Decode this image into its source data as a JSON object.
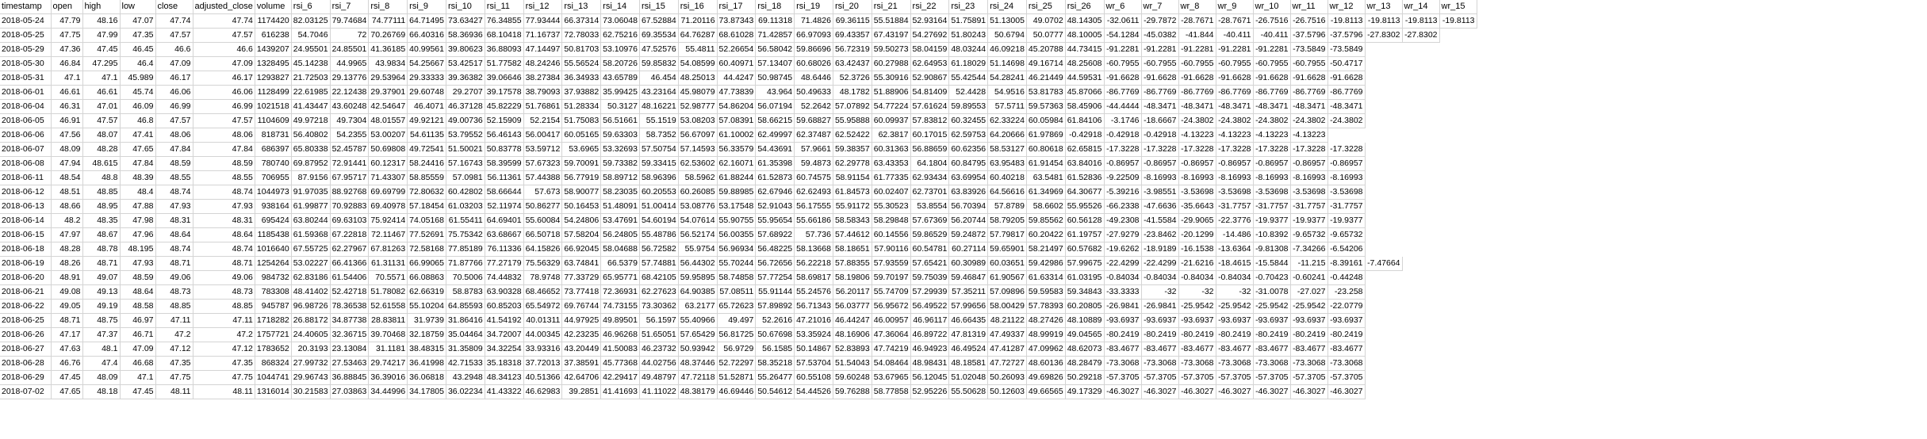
{
  "sheet": {
    "headers": [
      "timestamp",
      "open",
      "high",
      "low",
      "close",
      "adjusted_close",
      "volume",
      "rsi_6",
      "rsi_7",
      "rsi_8",
      "rsi_9",
      "rsi_10",
      "rsi_11",
      "rsi_12",
      "rsi_13",
      "rsi_14",
      "rsi_15",
      "rsi_16",
      "rsi_17",
      "rsi_18",
      "rsi_19",
      "rsi_20",
      "rsi_21",
      "rsi_22",
      "rsi_23",
      "rsi_24",
      "rsi_25",
      "rsi_26",
      "wr_6",
      "wr_7",
      "wr_8",
      "wr_9",
      "wr_10",
      "wr_11",
      "wr_12",
      "wr_13",
      "wr_14",
      "wr_15"
    ],
    "rows": [
      [
        "2018-05-24",
        "47.79",
        "48.16",
        "47.07",
        "47.74",
        "47.74",
        "1174420",
        "82.03125",
        "79.74684",
        "74.77111",
        "64.71495",
        "73.63427",
        "76.34855",
        "77.93444",
        "66.37314",
        "73.06048",
        "67.52884",
        "71.20116",
        "73.87343",
        "69.11318",
        "71.4826",
        "69.36115",
        "55.51884",
        "52.93164",
        "51.75891",
        "51.13005",
        "49.0702",
        "48.14305",
        "-32.0611",
        "-29.7872",
        "-28.7671",
        "-28.7671",
        "-26.7516",
        "-26.7516",
        "-19.8113",
        "-19.8113",
        "-19.8113",
        "-19.8113"
      ],
      [
        "2018-05-25",
        "47.75",
        "47.99",
        "47.35",
        "47.57",
        "47.57",
        "616238",
        "54.7046",
        "72",
        "70.26769",
        "66.40316",
        "58.36936",
        "68.10418",
        "71.16737",
        "72.78033",
        "62.75216",
        "69.35534",
        "64.76287",
        "68.61028",
        "71.42857",
        "66.97093",
        "69.43357",
        "67.43197",
        "54.27692",
        "51.80243",
        "50.6794",
        "50.0777",
        "48.10005",
        "-54.1284",
        "-45.0382",
        "-41.844",
        "-40.411",
        "-40.411",
        "-37.5796",
        "-37.5796",
        "-27.8302",
        "-27.8302"
      ],
      [
        "2018-05-29",
        "47.36",
        "47.45",
        "46.45",
        "46.6",
        "46.6",
        "1439207",
        "24.95501",
        "24.85501",
        "41.36185",
        "40.99561",
        "39.80623",
        "36.88093",
        "47.14497",
        "50.81703",
        "53.10976",
        "47.52576",
        "55.4811",
        "52.26654",
        "56.58042",
        "59.86696",
        "56.72319",
        "59.50273",
        "58.04159",
        "48.03244",
        "46.09218",
        "45.20788",
        "44.73415",
        "-91.2281",
        "-91.2281",
        "-91.2281",
        "-91.2281",
        "-91.2281",
        "-73.5849",
        "-73.5849"
      ],
      [
        "2018-05-30",
        "46.84",
        "47.295",
        "46.4",
        "47.09",
        "47.09",
        "1328495",
        "45.14238",
        "44.9965",
        "43.9834",
        "54.25667",
        "53.42517",
        "51.77582",
        "48.24246",
        "55.56524",
        "58.20726",
        "59.85832",
        "54.08599",
        "60.40971",
        "57.13407",
        "60.68026",
        "63.42437",
        "60.27988",
        "62.64953",
        "61.18029",
        "51.14698",
        "49.16714",
        "48.25608",
        "-60.7955",
        "-60.7955",
        "-60.7955",
        "-60.7955",
        "-60.7955",
        "-60.7955",
        "-50.4717"
      ],
      [
        "2018-05-31",
        "47.1",
        "47.1",
        "45.989",
        "46.17",
        "46.17",
        "1293827",
        "21.72503",
        "29.13776",
        "29.53964",
        "29.33333",
        "39.36382",
        "39.06646",
        "38.27384",
        "36.34933",
        "43.65789",
        "46.454",
        "48.25013",
        "44.4247",
        "50.98745",
        "48.6446",
        "52.3726",
        "55.30916",
        "52.90867",
        "55.42544",
        "54.28241",
        "46.21449",
        "44.59531",
        "-91.6628",
        "-91.6628",
        "-91.6628",
        "-91.6628",
        "-91.6628",
        "-91.6628",
        "-91.6628"
      ],
      [
        "2018-06-01",
        "46.61",
        "46.61",
        "45.74",
        "46.06",
        "46.06",
        "1128499",
        "22.61985",
        "22.12438",
        "29.37901",
        "29.60748",
        "29.2707",
        "39.17578",
        "38.79093",
        "37.93882",
        "35.99425",
        "43.23164",
        "45.98079",
        "47.73839",
        "43.964",
        "50.49633",
        "48.1782",
        "51.88906",
        "54.81409",
        "52.4428",
        "54.9516",
        "53.81783",
        "45.87066",
        "-86.7769",
        "-86.7769",
        "-86.7769",
        "-86.7769",
        "-86.7769",
        "-86.7769",
        "-86.7769"
      ],
      [
        "2018-06-04",
        "46.31",
        "47.01",
        "46.09",
        "46.99",
        "46.99",
        "1021518",
        "41.43447",
        "43.60248",
        "42.54647",
        "46.4071",
        "46.37128",
        "45.82229",
        "51.76861",
        "51.28334",
        "50.3127",
        "48.16221",
        "52.98777",
        "54.86204",
        "56.07194",
        "52.2642",
        "57.07892",
        "54.77224",
        "57.61624",
        "59.89553",
        "57.5711",
        "59.57363",
        "58.45906",
        "-44.4444",
        "-48.3471",
        "-48.3471",
        "-48.3471",
        "-48.3471",
        "-48.3471",
        "-48.3471"
      ],
      [
        "2018-06-05",
        "46.91",
        "47.57",
        "46.8",
        "47.57",
        "47.57",
        "1104609",
        "49.97218",
        "49.7304",
        "48.01557",
        "49.92121",
        "49.00736",
        "52.15909",
        "52.2154",
        "51.75083",
        "56.51661",
        "55.1519",
        "53.08203",
        "57.08391",
        "58.66215",
        "59.68827",
        "55.95888",
        "60.09937",
        "57.83812",
        "60.32455",
        "62.33224",
        "60.05984",
        "61.84106",
        "-3.1746",
        "-18.6667",
        "-24.3802",
        "-24.3802",
        "-24.3802",
        "-24.3802",
        "-24.3802"
      ],
      [
        "2018-06-06",
        "47.56",
        "48.07",
        "47.41",
        "48.06",
        "48.06",
        "818731",
        "56.40802",
        "54.2355",
        "53.00207",
        "54.61135",
        "53.79552",
        "56.46143",
        "56.00417",
        "60.05165",
        "59.63303",
        "58.7352",
        "56.67097",
        "61.10002",
        "62.49997",
        "62.37487",
        "62.52422",
        "62.3817",
        "60.17015",
        "62.59753",
        "64.20666",
        "61.97869",
        "-0.42918",
        "-0.42918",
        "-0.42918",
        "-4.13223",
        "-4.13223",
        "-4.13223",
        "-4.13223"
      ],
      [
        "2018-06-07",
        "48.09",
        "48.28",
        "47.65",
        "47.84",
        "47.84",
        "686397",
        "65.80338",
        "52.45787",
        "50.69808",
        "49.72541",
        "51.50021",
        "50.83778",
        "53.59712",
        "53.6965",
        "53.32693",
        "57.50754",
        "57.14593",
        "56.33579",
        "54.43691",
        "57.9661",
        "59.38357",
        "60.31363",
        "56.88659",
        "60.62356",
        "58.53127",
        "60.80618",
        "62.65815",
        "-17.3228",
        "-17.3228",
        "-17.3228",
        "-17.3228",
        "-17.3228",
        "-17.3228",
        "-17.3228"
      ],
      [
        "2018-06-08",
        "47.94",
        "48.615",
        "47.84",
        "48.59",
        "48.59",
        "780740",
        "69.87952",
        "72.91441",
        "60.12317",
        "58.24416",
        "57.16743",
        "58.39599",
        "57.67323",
        "59.70091",
        "59.73382",
        "59.33415",
        "62.53602",
        "62.16071",
        "61.35398",
        "59.4873",
        "62.29778",
        "63.43353",
        "64.1804",
        "60.84795",
        "63.95483",
        "61.91454",
        "63.84016",
        "-0.86957",
        "-0.86957",
        "-0.86957",
        "-0.86957",
        "-0.86957",
        "-0.86957",
        "-0.86957"
      ],
      [
        "2018-06-11",
        "48.54",
        "48.8",
        "48.39",
        "48.55",
        "48.55",
        "706955",
        "87.9156",
        "67.95717",
        "71.43307",
        "58.85559",
        "57.0981",
        "56.11361",
        "57.44388",
        "56.77919",
        "58.89712",
        "58.96396",
        "58.5962",
        "61.88244",
        "61.52873",
        "60.74575",
        "58.91154",
        "61.77335",
        "62.93434",
        "63.69954",
        "60.40218",
        "63.5481",
        "61.52836",
        "-9.22509",
        "-8.16993",
        "-8.16993",
        "-8.16993",
        "-8.16993",
        "-8.16993",
        "-8.16993"
      ],
      [
        "2018-06-12",
        "48.51",
        "48.85",
        "48.4",
        "48.74",
        "48.74",
        "1044973",
        "91.97035",
        "88.92768",
        "69.69799",
        "72.80632",
        "60.42802",
        "58.66644",
        "57.673",
        "58.90077",
        "58.23035",
        "60.20553",
        "60.26085",
        "59.88985",
        "62.67946",
        "62.62493",
        "61.84573",
        "60.02407",
        "62.73701",
        "63.83926",
        "64.56616",
        "61.34969",
        "64.30677",
        "-5.39216",
        "-3.98551",
        "-3.53698",
        "-3.53698",
        "-3.53698",
        "-3.53698",
        "-3.53698"
      ],
      [
        "2018-06-13",
        "48.66",
        "48.95",
        "47.88",
        "47.93",
        "47.93",
        "938164",
        "61.99877",
        "70.92883",
        "69.40978",
        "57.18454",
        "61.03203",
        "52.11974",
        "50.86277",
        "50.16453",
        "51.48091",
        "51.00414",
        "53.08776",
        "53.17548",
        "52.91043",
        "56.17555",
        "55.91172",
        "55.30523",
        "53.8554",
        "56.70394",
        "57.8789",
        "58.6602",
        "55.95526",
        "-66.2338",
        "-47.6636",
        "-35.6643",
        "-31.7757",
        "-31.7757",
        "-31.7757",
        "-31.7757"
      ],
      [
        "2018-06-14",
        "48.2",
        "48.35",
        "47.98",
        "48.31",
        "48.31",
        "695424",
        "63.80244",
        "69.63103",
        "75.92414",
        "74.05168",
        "61.55411",
        "64.69401",
        "55.60084",
        "54.24806",
        "53.47691",
        "54.60194",
        "54.07614",
        "55.90755",
        "55.95654",
        "55.66186",
        "58.58343",
        "58.29848",
        "57.67369",
        "56.20744",
        "58.79205",
        "59.85562",
        "60.56128",
        "-49.2308",
        "-41.5584",
        "-29.9065",
        "-22.3776",
        "-19.9377",
        "-19.9377",
        "-19.9377"
      ],
      [
        "2018-06-15",
        "47.97",
        "48.67",
        "47.96",
        "48.64",
        "48.64",
        "1185438",
        "61.59368",
        "67.22818",
        "72.11467",
        "77.52691",
        "75.75342",
        "63.68667",
        "66.50718",
        "57.58204",
        "56.24805",
        "55.48786",
        "56.52174",
        "56.00355",
        "57.68922",
        "57.736",
        "57.44612",
        "60.14556",
        "59.86529",
        "59.24872",
        "57.79817",
        "60.20422",
        "61.19757",
        "-27.9279",
        "-23.8462",
        "-20.1299",
        "-14.486",
        "-10.8392",
        "-9.65732",
        "-9.65732"
      ],
      [
        "2018-06-18",
        "48.28",
        "48.78",
        "48.195",
        "48.74",
        "48.74",
        "1016640",
        "67.55725",
        "62.27967",
        "67.81263",
        "72.58168",
        "77.85189",
        "76.11336",
        "64.15826",
        "66.92045",
        "58.04688",
        "56.72582",
        "55.9754",
        "56.96934",
        "56.48225",
        "58.13668",
        "58.18651",
        "57.90116",
        "60.54781",
        "60.27114",
        "59.65901",
        "58.21497",
        "60.57682",
        "-19.6262",
        "-18.9189",
        "-16.1538",
        "-13.6364",
        "-9.81308",
        "-7.34266",
        "-6.54206"
      ],
      [
        "2018-06-19",
        "48.26",
        "48.71",
        "47.93",
        "48.71",
        "48.71",
        "1254264",
        "53.02227",
        "66.41366",
        "61.31131",
        "66.99065",
        "71.87766",
        "77.27179",
        "75.56329",
        "63.74841",
        "66.5379",
        "57.74881",
        "56.44302",
        "55.70244",
        "56.72656",
        "56.22218",
        "57.88355",
        "57.93559",
        "57.65421",
        "60.30989",
        "60.03651",
        "59.42986",
        "57.99675",
        "-22.4299",
        "-22.4299",
        "-21.6216",
        "-18.4615",
        "-15.5844",
        "-11.215",
        "-8.39161",
        "-7.47664"
      ],
      [
        "2018-06-20",
        "48.91",
        "49.07",
        "48.59",
        "49.06",
        "49.06",
        "984732",
        "62.83186",
        "61.54406",
        "70.5571",
        "66.08863",
        "70.5006",
        "74.44832",
        "78.9748",
        "77.33729",
        "65.95771",
        "68.42105",
        "59.95895",
        "58.74858",
        "57.77254",
        "58.69817",
        "58.19806",
        "59.70197",
        "59.75039",
        "59.46847",
        "61.90567",
        "61.63314",
        "61.03195",
        "-0.84034",
        "-0.84034",
        "-0.84034",
        "-0.84034",
        "-0.70423",
        "-0.60241",
        "-0.44248"
      ],
      [
        "2018-06-21",
        "49.08",
        "49.13",
        "48.64",
        "48.73",
        "48.73",
        "783308",
        "48.41402",
        "52.42718",
        "51.78082",
        "62.66319",
        "58.8783",
        "63.90328",
        "68.46652",
        "73.77418",
        "72.36931",
        "62.27623",
        "64.90385",
        "57.08511",
        "55.91144",
        "55.24576",
        "56.20117",
        "55.74709",
        "57.29939",
        "57.35211",
        "57.09896",
        "59.59583",
        "59.34843",
        "-33.3333",
        "-32",
        "-32",
        "-32",
        "-31.0078",
        "-27.027",
        "-23.258"
      ],
      [
        "2018-06-22",
        "49.05",
        "49.19",
        "48.58",
        "48.85",
        "48.85",
        "945787",
        "96.98726",
        "78.36538",
        "52.61558",
        "55.10204",
        "64.85593",
        "60.85203",
        "65.54972",
        "69.76744",
        "74.73155",
        "73.30362",
        "63.2177",
        "65.72623",
        "57.89892",
        "56.71343",
        "56.03777",
        "56.95672",
        "56.49522",
        "57.99656",
        "58.00429",
        "57.78393",
        "60.20805",
        "-26.9841",
        "-26.9841",
        "-25.9542",
        "-25.9542",
        "-25.9542",
        "-25.9542",
        "-22.0779"
      ],
      [
        "2018-06-25",
        "48.71",
        "48.75",
        "46.97",
        "47.11",
        "47.11",
        "1718282",
        "26.88172",
        "34.87738",
        "28.83811",
        "31.9739",
        "31.86416",
        "41.54192",
        "40.01311",
        "44.97925",
        "49.89501",
        "56.1597",
        "55.40966",
        "49.497",
        "52.2616",
        "47.21016",
        "46.44247",
        "46.00957",
        "46.96117",
        "46.66435",
        "48.21122",
        "48.27426",
        "48.10889",
        "-93.6937",
        "-93.6937",
        "-93.6937",
        "-93.6937",
        "-93.6937",
        "-93.6937",
        "-93.6937"
      ],
      [
        "2018-06-26",
        "47.17",
        "47.37",
        "46.71",
        "47.2",
        "47.2",
        "1757721",
        "24.40605",
        "32.36715",
        "39.70468",
        "32.18759",
        "35.04464",
        "34.72007",
        "44.00345",
        "42.23235",
        "46.96268",
        "51.65051",
        "57.65429",
        "56.81725",
        "50.67698",
        "53.35924",
        "48.16906",
        "47.36064",
        "46.89722",
        "47.81319",
        "47.49337",
        "48.99919",
        "49.04565",
        "-80.2419",
        "-80.2419",
        "-80.2419",
        "-80.2419",
        "-80.2419",
        "-80.2419",
        "-80.2419"
      ],
      [
        "2018-06-27",
        "47.63",
        "48.1",
        "47.09",
        "47.12",
        "47.12",
        "1783652",
        "20.3193",
        "23.13084",
        "31.1181",
        "38.48315",
        "31.35809",
        "34.32254",
        "33.93316",
        "43.20449",
        "41.50083",
        "46.23732",
        "50.93942",
        "56.9729",
        "56.1585",
        "50.14867",
        "52.83893",
        "47.74219",
        "46.94923",
        "46.49524",
        "47.41287",
        "47.09962",
        "48.62073",
        "-83.4677",
        "-83.4677",
        "-83.4677",
        "-83.4677",
        "-83.4677",
        "-83.4677",
        "-83.4677"
      ],
      [
        "2018-06-28",
        "46.76",
        "47.4",
        "46.68",
        "47.35",
        "47.35",
        "868324",
        "27.99732",
        "27.53463",
        "29.74217",
        "36.41998",
        "42.71533",
        "35.18318",
        "37.72013",
        "37.38591",
        "45.77368",
        "44.02756",
        "48.37446",
        "52.72297",
        "58.35218",
        "57.53704",
        "51.54043",
        "54.08464",
        "48.98431",
        "48.18581",
        "47.72727",
        "48.60136",
        "48.28479",
        "-73.3068",
        "-73.3068",
        "-73.3068",
        "-73.3068",
        "-73.3068",
        "-73.3068",
        "-73.3068"
      ],
      [
        "2018-06-29",
        "47.45",
        "48.09",
        "47.1",
        "47.75",
        "47.75",
        "1044741",
        "29.96743",
        "36.88845",
        "36.39016",
        "36.06818",
        "43.2948",
        "48.34123",
        "40.51366",
        "42.64706",
        "42.29417",
        "49.48797",
        "47.72118",
        "51.52871",
        "55.26477",
        "60.55108",
        "59.60248",
        "53.67965",
        "56.12045",
        "51.02048",
        "50.26093",
        "49.69826",
        "50.29218",
        "-57.3705",
        "-57.3705",
        "-57.3705",
        "-57.3705",
        "-57.3705",
        "-57.3705",
        "-57.3705"
      ],
      [
        "2018-07-02",
        "47.65",
        "48.18",
        "47.45",
        "48.11",
        "48.11",
        "1316014",
        "30.21583",
        "27.03863",
        "34.44996",
        "34.17805",
        "36.02234",
        "41.43322",
        "46.62983",
        "39.2851",
        "41.41693",
        "41.11022",
        "48.38179",
        "46.69446",
        "50.54612",
        "54.44526",
        "59.76288",
        "58.77858",
        "52.95226",
        "55.50628",
        "50.12603",
        "49.66565",
        "49.17329",
        "-46.3027",
        "-46.3027",
        "-46.3027",
        "-46.3027",
        "-46.3027",
        "-46.3027",
        "-46.3027"
      ]
    ]
  }
}
